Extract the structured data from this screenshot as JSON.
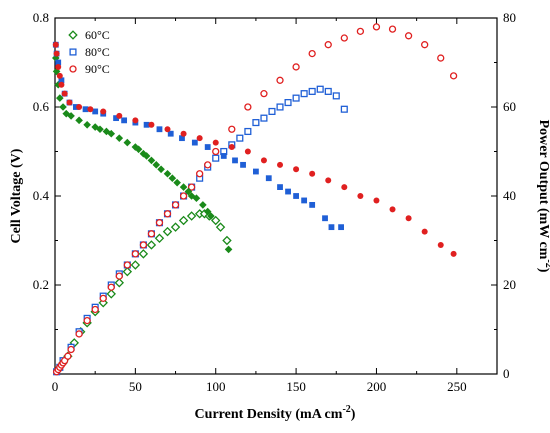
{
  "chart_data": {
    "type": "scatter",
    "title": "",
    "xlabel": "Current Density (mA cm",
    "xlabel_sup": "-2",
    "xlabel_end": ")",
    "ylabel_left": "Cell Voltage (V)",
    "ylabel_right": "Power Output (mW cm",
    "ylabel_right_sup": "-2",
    "ylabel_right_end": ")",
    "xlim": [
      0,
      275
    ],
    "ylim_left": [
      0,
      0.8
    ],
    "ylim_right": [
      0,
      80
    ],
    "x_ticks": [
      "0",
      "50",
      "100",
      "150",
      "200",
      "250"
    ],
    "x_tick_values": [
      0,
      50,
      100,
      150,
      200,
      250
    ],
    "y_left_ticks": [
      "0.2",
      "0.4",
      "0.6",
      "0.8"
    ],
    "y_left_tick_values": [
      0.2,
      0.4,
      0.6,
      0.8
    ],
    "y_right_ticks": [
      "0",
      "20",
      "40",
      "60",
      "80"
    ],
    "y_right_tick_values": [
      0,
      20,
      40,
      60,
      80
    ],
    "grid": false,
    "legend_position": "top-left",
    "legend": [
      {
        "label": "60°C",
        "color": "#1a8a1a",
        "marker": "diamond"
      },
      {
        "label": "80°C",
        "color": "#1f5fd6",
        "marker": "square"
      },
      {
        "label": "90°C",
        "color": "#e02020",
        "marker": "circle"
      }
    ],
    "series": [
      {
        "name": "60°C",
        "axis": "left",
        "color": "#1a8a1a",
        "marker": "diamond",
        "filled": true,
        "x": [
          0.5,
          1,
          2,
          3,
          5,
          7,
          10,
          15,
          20,
          25,
          28,
          32,
          35,
          40,
          45,
          50,
          52,
          55,
          57,
          60,
          63,
          66,
          70,
          73,
          76,
          80,
          83,
          85,
          88,
          92,
          95,
          97,
          108
        ],
        "y": [
          0.71,
          0.68,
          0.65,
          0.62,
          0.6,
          0.585,
          0.58,
          0.57,
          0.56,
          0.555,
          0.55,
          0.545,
          0.54,
          0.53,
          0.52,
          0.51,
          0.505,
          0.495,
          0.49,
          0.48,
          0.47,
          0.46,
          0.45,
          0.44,
          0.43,
          0.42,
          0.41,
          0.4,
          0.395,
          0.38,
          0.365,
          0.355,
          0.28
        ]
      },
      {
        "name": "80°C",
        "axis": "left",
        "color": "#1f5fd6",
        "marker": "square",
        "filled": true,
        "x": [
          0.5,
          1,
          2,
          4,
          6,
          9,
          13,
          19,
          25,
          30,
          38,
          43,
          50,
          57,
          65,
          72,
          79,
          87,
          95,
          105,
          112,
          117,
          125,
          133,
          140,
          145,
          150,
          155,
          160,
          168,
          172,
          178
        ],
        "y": [
          0.74,
          0.72,
          0.7,
          0.66,
          0.63,
          0.61,
          0.6,
          0.595,
          0.59,
          0.585,
          0.575,
          0.57,
          0.565,
          0.56,
          0.55,
          0.54,
          0.53,
          0.52,
          0.51,
          0.49,
          0.48,
          0.47,
          0.455,
          0.44,
          0.42,
          0.41,
          0.4,
          0.39,
          0.38,
          0.35,
          0.33,
          0.33
        ]
      },
      {
        "name": "90°C",
        "axis": "left",
        "color": "#e02020",
        "marker": "circle",
        "filled": true,
        "x": [
          0.5,
          1,
          2,
          3,
          4,
          6,
          9,
          15,
          22,
          30,
          40,
          50,
          60,
          70,
          80,
          90,
          100,
          110,
          120,
          130,
          140,
          150,
          160,
          170,
          180,
          190,
          200,
          210,
          220,
          230,
          240,
          248
        ],
        "y": [
          0.74,
          0.72,
          0.69,
          0.67,
          0.65,
          0.63,
          0.61,
          0.6,
          0.595,
          0.59,
          0.58,
          0.57,
          0.56,
          0.55,
          0.54,
          0.53,
          0.52,
          0.51,
          0.5,
          0.48,
          0.47,
          0.46,
          0.45,
          0.435,
          0.42,
          0.4,
          0.39,
          0.37,
          0.35,
          0.32,
          0.29,
          0.27
        ]
      },
      {
        "name": "60°C",
        "axis": "right",
        "color": "#1a8a1a",
        "marker": "diamond",
        "filled": false,
        "x": [
          2,
          5,
          8,
          12,
          16,
          20,
          25,
          30,
          35,
          40,
          45,
          50,
          55,
          60,
          65,
          70,
          75,
          80,
          85,
          90,
          93,
          96,
          100,
          103,
          107
        ],
        "y": [
          1,
          2.5,
          4,
          7,
          9.5,
          11.5,
          14,
          16,
          18,
          20.5,
          23,
          24.5,
          27,
          29,
          30.5,
          32,
          33,
          34.5,
          35.5,
          36,
          36,
          35.5,
          34.5,
          33,
          30
        ]
      },
      {
        "name": "80°C",
        "axis": "right",
        "color": "#1f5fd6",
        "marker": "square",
        "filled": false,
        "x": [
          1,
          3,
          5,
          10,
          15,
          20,
          25,
          30,
          35,
          40,
          45,
          50,
          55,
          60,
          65,
          70,
          75,
          80,
          85,
          90,
          95,
          100,
          105,
          110,
          115,
          120,
          125,
          130,
          135,
          140,
          145,
          150,
          155,
          160,
          165,
          170,
          175,
          180
        ],
        "y": [
          0.5,
          1.5,
          3,
          6,
          9.5,
          12.5,
          15,
          17.5,
          20,
          22.5,
          24.5,
          27,
          29,
          31.5,
          34,
          36,
          38,
          40,
          42,
          44,
          46.5,
          48.5,
          50,
          51.5,
          53,
          54.5,
          56.5,
          57.5,
          59,
          60,
          61,
          62,
          63,
          63.5,
          64,
          63.5,
          62.5,
          59.5
        ]
      },
      {
        "name": "90°C",
        "axis": "right",
        "color": "#e02020",
        "marker": "circle",
        "filled": false,
        "x": [
          1,
          2,
          3,
          4,
          5,
          6,
          8,
          10,
          15,
          20,
          25,
          30,
          35,
          40,
          45,
          50,
          55,
          60,
          65,
          70,
          75,
          80,
          85,
          90,
          95,
          100,
          110,
          120,
          130,
          140,
          150,
          160,
          170,
          180,
          190,
          200,
          210,
          220,
          230,
          240,
          248
        ],
        "y": [
          0.5,
          1,
          1.5,
          2,
          2.5,
          3,
          4,
          5.5,
          9,
          12,
          14.5,
          17,
          19.5,
          22,
          24.5,
          27,
          29,
          31.5,
          34,
          36,
          38,
          40,
          42,
          45,
          47,
          50,
          55,
          60,
          63,
          66,
          69,
          72,
          74,
          75.5,
          77,
          78,
          77.5,
          76,
          74,
          71,
          67
        ]
      }
    ]
  }
}
